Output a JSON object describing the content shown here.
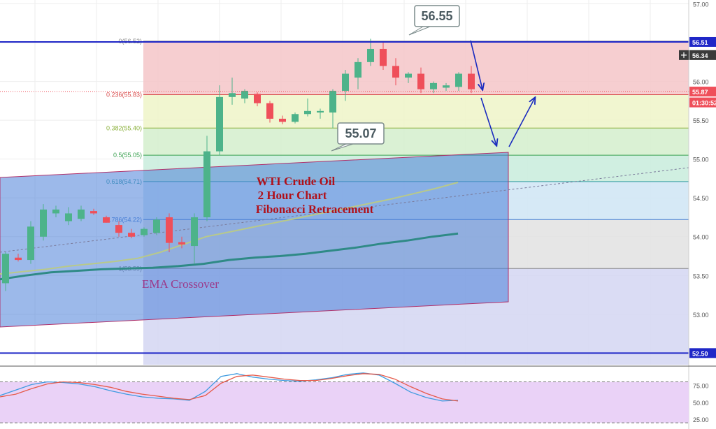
{
  "colors": {
    "bull": "#4db38a",
    "bear": "#ef4f5a",
    "blue_line": "#1f27c7",
    "channel": "#4b7fd8",
    "ema_fast": "#b8c98a",
    "ema_slow": "#2f8a86",
    "stoch_k": "#3e9be0",
    "stoch_d": "#e65a4a",
    "anno_text": "#b0101a",
    "ema_text": "#9b3a8a",
    "arrow": "#1a2bbf"
  },
  "chart_data": [
    {
      "type": "candlestick",
      "title": "WTI Crude Oil",
      "subtitle": "2 Hour Chart",
      "subtitle2": "Fibonacci Retracement",
      "ylim": [
        52.35,
        57.05
      ],
      "y_ticks": [
        "57.00",
        "56.50",
        "56.00",
        "55.50",
        "55.00",
        "54.50",
        "54.00",
        "53.50",
        "53.00",
        "52.50"
      ],
      "y_tick_values": [
        57.0,
        56.5,
        56.0,
        55.5,
        55.0,
        54.5,
        54.0,
        53.5,
        53.0,
        52.5
      ],
      "grid": true,
      "candles": [
        {
          "o": 53.4,
          "h": 53.8,
          "l": 53.3,
          "c": 53.78
        },
        {
          "o": 53.73,
          "h": 53.78,
          "l": 53.68,
          "c": 53.7
        },
        {
          "o": 53.7,
          "h": 54.2,
          "l": 53.65,
          "c": 54.13
        },
        {
          "o": 54.0,
          "h": 54.42,
          "l": 53.95,
          "c": 54.35
        },
        {
          "o": 54.3,
          "h": 54.4,
          "l": 54.25,
          "c": 54.35
        },
        {
          "o": 54.2,
          "h": 54.38,
          "l": 54.15,
          "c": 54.3
        },
        {
          "o": 54.23,
          "h": 54.4,
          "l": 54.2,
          "c": 54.35
        },
        {
          "o": 54.33,
          "h": 54.36,
          "l": 54.28,
          "c": 54.3
        },
        {
          "o": 54.25,
          "h": 54.27,
          "l": 54.18,
          "c": 54.18
        },
        {
          "o": 54.15,
          "h": 54.2,
          "l": 54.0,
          "c": 54.05
        },
        {
          "o": 54.05,
          "h": 54.1,
          "l": 53.98,
          "c": 54.0
        },
        {
          "o": 54.02,
          "h": 54.12,
          "l": 54.0,
          "c": 54.1
        },
        {
          "o": 54.05,
          "h": 54.25,
          "l": 54.02,
          "c": 54.22
        },
        {
          "o": 54.25,
          "h": 54.3,
          "l": 53.8,
          "c": 53.92
        },
        {
          "o": 53.93,
          "h": 54.0,
          "l": 53.85,
          "c": 53.9
        },
        {
          "o": 53.88,
          "h": 54.3,
          "l": 53.65,
          "c": 54.25
        },
        {
          "o": 54.25,
          "h": 55.3,
          "l": 54.2,
          "c": 55.1
        },
        {
          "o": 55.1,
          "h": 55.95,
          "l": 55.05,
          "c": 55.8
        },
        {
          "o": 55.8,
          "h": 56.05,
          "l": 55.7,
          "c": 55.85
        },
        {
          "o": 55.78,
          "h": 55.9,
          "l": 55.72,
          "c": 55.88
        },
        {
          "o": 55.84,
          "h": 55.86,
          "l": 55.68,
          "c": 55.72
        },
        {
          "o": 55.72,
          "h": 55.75,
          "l": 55.47,
          "c": 55.52
        },
        {
          "o": 55.52,
          "h": 55.56,
          "l": 55.45,
          "c": 55.48
        },
        {
          "o": 55.48,
          "h": 55.6,
          "l": 55.46,
          "c": 55.58
        },
        {
          "o": 55.58,
          "h": 55.78,
          "l": 55.55,
          "c": 55.62
        },
        {
          "o": 55.6,
          "h": 55.65,
          "l": 55.52,
          "c": 55.62
        },
        {
          "o": 55.6,
          "h": 55.9,
          "l": 55.4,
          "c": 55.88
        },
        {
          "o": 55.88,
          "h": 56.15,
          "l": 55.75,
          "c": 56.1
        },
        {
          "o": 56.05,
          "h": 56.3,
          "l": 55.9,
          "c": 56.25
        },
        {
          "o": 56.25,
          "h": 56.55,
          "l": 56.2,
          "c": 56.42
        },
        {
          "o": 56.42,
          "h": 56.5,
          "l": 56.15,
          "c": 56.2
        },
        {
          "o": 56.2,
          "h": 56.3,
          "l": 55.95,
          "c": 56.05
        },
        {
          "o": 56.05,
          "h": 56.12,
          "l": 55.98,
          "c": 56.1
        },
        {
          "o": 56.1,
          "h": 56.18,
          "l": 55.85,
          "c": 55.9
        },
        {
          "o": 55.9,
          "h": 56.0,
          "l": 55.85,
          "c": 55.98
        },
        {
          "o": 55.92,
          "h": 55.98,
          "l": 55.88,
          "c": 55.95
        },
        {
          "o": 55.93,
          "h": 56.12,
          "l": 55.88,
          "c": 56.1
        },
        {
          "o": 56.1,
          "h": 56.2,
          "l": 55.85,
          "c": 55.9
        }
      ],
      "fib_levels": [
        {
          "label": "0(56.52)",
          "value": 56.52,
          "color": "#8a8a8a"
        },
        {
          "label": "0.236(55.83)",
          "value": 55.83,
          "color": "#d94b4b"
        },
        {
          "label": "0.382(55.40)",
          "value": 55.4,
          "color": "#8ab03a"
        },
        {
          "label": "0.5(55.05)",
          "value": 55.05,
          "color": "#3aa050"
        },
        {
          "label": "0.618(54.71)",
          "value": 54.71,
          "color": "#2f9aa0"
        },
        {
          "label": "0.786(54.22)",
          "value": 54.22,
          "color": "#3f7ad0"
        },
        {
          "label": "1(53.59)",
          "value": 53.59,
          "color": "#8a8a8a"
        }
      ],
      "fib_bands": [
        {
          "from": 56.52,
          "to": 55.83,
          "color": "#f4c6c8"
        },
        {
          "from": 55.83,
          "to": 55.4,
          "color": "#eef5c8"
        },
        {
          "from": 55.4,
          "to": 55.05,
          "color": "#d4efcc"
        },
        {
          "from": 55.05,
          "to": 54.71,
          "color": "#c8ecdc"
        },
        {
          "from": 54.71,
          "to": 54.22,
          "color": "#cfe5f4"
        },
        {
          "from": 54.22,
          "to": 53.59,
          "color": "#e2e2e2"
        },
        {
          "from": 53.59,
          "to": 52.35,
          "color": "#d3d6f2"
        }
      ],
      "horizontal_lines": [
        56.51,
        52.5
      ],
      "price_tags": [
        {
          "label": "56.51",
          "value": 56.51,
          "bg": "#1f27c7",
          "fg": "#ffffff"
        },
        {
          "label": "56.34",
          "value": 56.34,
          "bg": "#3a3a3a",
          "fg": "#ffffff"
        },
        {
          "label": "55.87",
          "value": 55.87,
          "bg": "#ef4f5a",
          "fg": "#ffffff"
        },
        {
          "label": "01:30:52",
          "value": 55.73,
          "bg": "#ef4f5a",
          "fg": "#ffffff"
        },
        {
          "label": "52.50",
          "value": 52.5,
          "bg": "#1f27c7",
          "fg": "#ffffff"
        }
      ],
      "callouts": [
        {
          "label": "56.55",
          "value": 56.55
        },
        {
          "label": "55.07",
          "value": 55.07
        }
      ],
      "ema_fast": [
        53.52,
        53.55,
        53.58,
        53.62,
        53.65,
        53.68,
        53.72,
        53.8,
        53.9,
        54.0,
        54.06,
        54.12,
        54.18,
        54.24,
        54.3,
        54.36,
        54.42,
        54.48,
        54.55,
        54.62,
        54.7
      ],
      "ema_slow": [
        53.45,
        53.5,
        53.54,
        53.56,
        53.58,
        53.59,
        53.6,
        53.62,
        53.65,
        53.7,
        53.73,
        53.75,
        53.78,
        53.82,
        53.86,
        53.91,
        53.95,
        54.0,
        54.04
      ],
      "annotation_main": [
        "WTI Crude Oil",
        "2 Hour Chart",
        "Fibonacci Retracement"
      ],
      "annotation_ema": "EMA Crossover"
    },
    {
      "type": "line",
      "title": "",
      "ylim": [
        15,
        100
      ],
      "y_ticks": [
        "75.00",
        "50.00",
        "25.00"
      ],
      "y_tick_values": [
        75,
        50,
        25
      ],
      "bands": [
        80,
        20
      ],
      "series": [
        {
          "values": [
            60,
            68,
            76,
            80,
            79,
            77,
            73,
            67,
            62,
            58,
            56,
            55,
            53,
            66,
            88,
            92,
            87,
            84,
            82,
            81,
            83,
            86,
            91,
            93,
            90,
            78,
            65,
            57,
            52,
            53
          ]
        },
        {
          "values": [
            58,
            62,
            70,
            77,
            80,
            79,
            76,
            72,
            66,
            62,
            59,
            56,
            54,
            60,
            78,
            88,
            90,
            87,
            84,
            82,
            82,
            85,
            89,
            92,
            91,
            84,
            73,
            63,
            55,
            52
          ]
        }
      ]
    }
  ]
}
